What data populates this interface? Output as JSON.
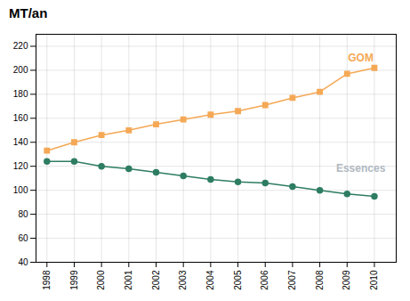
{
  "chart_data": {
    "type": "line",
    "title": "MT/an",
    "x": [
      1998,
      1999,
      2000,
      2001,
      2002,
      2003,
      2004,
      2005,
      2006,
      2007,
      2008,
      2009,
      2010
    ],
    "series": [
      {
        "color": "#F5A855",
        "marker": "square",
        "values": [
          133,
          140,
          146,
          150,
          155,
          159,
          163,
          166,
          171,
          177,
          182,
          197,
          202
        ]
      },
      {
        "color": "#2E7D62",
        "marker": "circle",
        "values": [
          124,
          124,
          120,
          118,
          115,
          112,
          109,
          107,
          106,
          103,
          100,
          97,
          95
        ]
      }
    ],
    "annotations": [
      {
        "text": "GOM",
        "x": 2009.5,
        "y": 210,
        "color": "#F5A855"
      },
      {
        "text": "Essences",
        "x": 2009.5,
        "y": 118,
        "color": "#B0B8C0"
      }
    ],
    "xlim": [
      1997.6,
      2010.8
    ],
    "xticks": [
      1998,
      1999,
      2000,
      2001,
      2002,
      2003,
      2004,
      2005,
      2006,
      2007,
      2008,
      2009,
      2010
    ],
    "ylim": [
      40,
      230
    ],
    "yticks": [
      40,
      60,
      80,
      100,
      120,
      140,
      160,
      180,
      200,
      220
    ],
    "grid": true
  }
}
